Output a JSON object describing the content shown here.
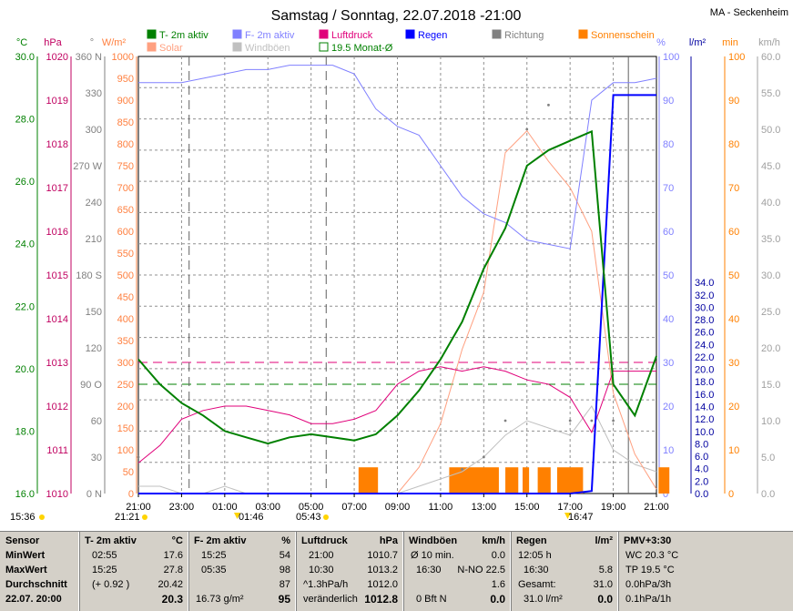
{
  "title": "Samstag / Sonntag, 22.07.2018  -21:00",
  "location": "MA - Seckenheim",
  "legend": [
    {
      "label": "T- 2m aktiv",
      "color": "#008000",
      "box": "filled"
    },
    {
      "label": "F- 2m aktiv",
      "color": "#8080ff",
      "box": "filled"
    },
    {
      "label": "Luftdruck",
      "color": "#e0007a",
      "box": "filled"
    },
    {
      "label": "Regen",
      "color": "#0000ff",
      "box": "filled"
    },
    {
      "label": "Richtung",
      "color": "#808080",
      "box": "filled"
    },
    {
      "label": "Sonnenschein",
      "color": "#ff8000",
      "box": "filled"
    },
    {
      "label": "Solar",
      "color": "#ffa080",
      "box": "filled"
    },
    {
      "label": "Windböen",
      "color": "#c0c0c0",
      "box": "filled"
    },
    {
      "label": "19.5 Monat-Ø",
      "color": "#008000",
      "box": "outline"
    }
  ],
  "axes_left": [
    {
      "unit": "°C",
      "color": "#008000",
      "ticks": [
        "30.0",
        "28.0",
        "26.0",
        "24.0",
        "22.0",
        "20.0",
        "18.0",
        "16.0"
      ]
    },
    {
      "unit": "hPa",
      "color": "#c00060",
      "ticks": [
        "1020",
        "1019",
        "1018",
        "1017",
        "1016",
        "1015",
        "1014",
        "1013",
        "1012",
        "1011",
        "1010"
      ]
    },
    {
      "unit": "°",
      "color": "#808080",
      "ticks": [
        "360 N",
        "330",
        "300",
        "270 W",
        "240",
        "210",
        "180 S",
        "150",
        "120",
        "90  O",
        "60",
        "30",
        "0   N"
      ]
    },
    {
      "unit": "W/m²",
      "color": "#ff8040",
      "ticks": [
        "1000",
        "950",
        "900",
        "850",
        "800",
        "750",
        "700",
        "650",
        "600",
        "550",
        "500",
        "450",
        "400",
        "350",
        "300",
        "250",
        "200",
        "150",
        "100",
        "50",
        "0"
      ]
    }
  ],
  "axes_right": [
    {
      "unit": "%",
      "color": "#8080ff",
      "ticks": [
        "100",
        "90",
        "80",
        "70",
        "60",
        "50",
        "40",
        "30",
        "20",
        "10",
        "0"
      ]
    },
    {
      "unit": "l/m²",
      "color": "#0000a0",
      "ticks": [
        "34.0",
        "32.0",
        "30.0",
        "28.0",
        "26.0",
        "24.0",
        "22.0",
        "20.0",
        "18.0",
        "16.0",
        "14.0",
        "12.0",
        "10.0",
        "8.0",
        "6.0",
        "4.0",
        "2.0",
        "0.0"
      ]
    },
    {
      "unit": "min",
      "color": "#ff8000",
      "ticks": [
        "100",
        "90",
        "80",
        "70",
        "60",
        "50",
        "40",
        "30",
        "20",
        "10",
        "0"
      ]
    },
    {
      "unit": "km/h",
      "color": "#a0a0a0",
      "ticks": [
        "60.0",
        "55.0",
        "50.0",
        "45.0",
        "40.0",
        "35.0",
        "30.0",
        "25.0",
        "20.0",
        "15.0",
        "10.0",
        "5.0",
        "0.0"
      ]
    }
  ],
  "x_ticks": [
    "21:00",
    "23:00",
    "01:00",
    "03:00",
    "05:00",
    "07:00",
    "09:00",
    "11:00",
    "13:00",
    "15:00",
    "17:00",
    "19:00",
    "21:00"
  ],
  "time_markers": {
    "sunset": "21:21",
    "sunrise": "05:43",
    "left_time": "15:36",
    "moon_below": "01:46",
    "moon_right": "16:47"
  },
  "chart_data": {
    "type": "line",
    "x_unit": "hours since 21:00 Saturday",
    "x": [
      0,
      1,
      2,
      3,
      4,
      5,
      6,
      7,
      8,
      9,
      10,
      11,
      12,
      13,
      14,
      15,
      16,
      17,
      18,
      19,
      20,
      21,
      22,
      23,
      24
    ],
    "series": [
      {
        "name": "T- 2m aktiv",
        "unit": "°C",
        "values": [
          20.3,
          19.5,
          18.9,
          18.5,
          18.0,
          17.8,
          17.6,
          17.8,
          17.9,
          17.8,
          17.7,
          17.9,
          18.5,
          19.3,
          20.3,
          21.5,
          23.2,
          24.5,
          26.5,
          27.0,
          27.3,
          27.6,
          19.5,
          18.5,
          20.4
        ]
      },
      {
        "name": "F- 2m aktiv",
        "unit": "%",
        "values": [
          94,
          94,
          94,
          95,
          96,
          97,
          97,
          98,
          98,
          98,
          96,
          88,
          84,
          82,
          75,
          68,
          64,
          62,
          58,
          57,
          56,
          90,
          94,
          94,
          95
        ]
      },
      {
        "name": "Luftdruck",
        "unit": "hPa",
        "values": [
          1010.7,
          1011.1,
          1011.7,
          1011.9,
          1012.0,
          1012.0,
          1011.9,
          1011.8,
          1011.6,
          1011.6,
          1011.7,
          1011.9,
          1012.5,
          1012.8,
          1012.9,
          1012.8,
          1012.9,
          1012.8,
          1012.6,
          1012.5,
          1012.2,
          1011.4,
          1012.8,
          1012.8,
          1012.8
        ]
      },
      {
        "name": "Solar",
        "unit": "W/m²",
        "values": [
          0,
          0,
          0,
          0,
          0,
          0,
          0,
          0,
          0,
          0,
          0,
          0,
          0,
          60,
          160,
          330,
          460,
          780,
          830,
          760,
          700,
          600,
          230,
          90,
          10
        ]
      },
      {
        "name": "Regen",
        "unit": "l/m²",
        "values": [
          0,
          0,
          0,
          0,
          0,
          0,
          0,
          0,
          0,
          0,
          0,
          0,
          0,
          0,
          0,
          0,
          0,
          0,
          0,
          0,
          0,
          0.2,
          31.0,
          31.0,
          31.0
        ]
      },
      {
        "name": "Windböen",
        "unit": "km/h",
        "values": [
          1,
          1,
          0,
          0,
          1,
          0,
          0,
          0,
          0,
          0,
          0,
          0,
          0,
          1,
          2,
          3,
          5,
          8,
          10,
          9,
          8,
          12,
          6,
          4,
          3
        ]
      },
      {
        "name": "Richtung",
        "unit": "°",
        "values": [
          30,
          0,
          0,
          0,
          0,
          0,
          0,
          0,
          0,
          0,
          0,
          0,
          0,
          0,
          0,
          20,
          30,
          60,
          300,
          320,
          60,
          60,
          60,
          0,
          0
        ]
      }
    ],
    "sunshine_blocks_hours": [
      [
        10.2,
        11.1
      ],
      [
        14.4,
        16.7
      ],
      [
        17.0,
        17.6
      ],
      [
        17.8,
        18.1
      ],
      [
        18.5,
        19.1
      ],
      [
        19.4,
        20.6
      ],
      [
        24.1,
        24.6
      ]
    ],
    "reference_lines": [
      {
        "name": "19.5 Monat-Ø",
        "unit": "°C",
        "value": 19.5
      },
      {
        "name": "Luftdruck ref",
        "unit": "hPa",
        "value": 1013.0
      }
    ],
    "ylim_temp": [
      16.0,
      30.0
    ],
    "ylim_pressure": [
      1010,
      1020
    ],
    "ylim_humidity": [
      0,
      100
    ],
    "ylim_rain": [
      0,
      34
    ],
    "ylim_solar": [
      0,
      1000
    ],
    "ylim_wind": [
      0,
      60
    ]
  },
  "table": {
    "headers": [
      [
        "Sensor",
        ""
      ],
      [
        "T- 2m aktiv",
        "°C"
      ],
      [
        "F- 2m aktiv",
        "%"
      ],
      [
        "Luftdruck",
        "hPa"
      ],
      [
        "Windböen",
        "km/h"
      ],
      [
        "Regen",
        "l/m²"
      ],
      [
        "PMV+3:30",
        ""
      ]
    ],
    "row_labels": [
      "MinWert",
      "MaxWert",
      "Durchschnitt",
      "22.07. 20:00"
    ],
    "temp": [
      [
        "02:55",
        "17.6"
      ],
      [
        "15:25",
        "27.8"
      ],
      [
        "(+ 0.92 )",
        "20.42"
      ],
      [
        "",
        "20.3"
      ]
    ],
    "humidity": [
      [
        "15:25",
        "54"
      ],
      [
        "05:35",
        "98"
      ],
      [
        "",
        "87"
      ],
      [
        "16.73 g/m²",
        "95"
      ]
    ],
    "pressure": [
      [
        "21:00",
        "1010.7"
      ],
      [
        "10:30",
        "1013.2"
      ],
      [
        "^1.3hPa/h",
        "1012.0"
      ],
      [
        "veränderlich",
        "1012.8"
      ]
    ],
    "wind": [
      [
        "Ø 10 min.",
        "0.0"
      ],
      [
        "16:30",
        "N-NO 22.5"
      ],
      [
        "",
        "1.6"
      ],
      [
        "0 Bft N",
        "0.0"
      ]
    ],
    "rain": [
      [
        "12:05 h",
        ""
      ],
      [
        "16:30",
        "5.8"
      ],
      [
        "Gesamt:",
        "31.0"
      ],
      [
        "31.0 l/m²",
        "0.0"
      ]
    ],
    "pmv": [
      "WC 20.3 °C",
      "TP 19.5 °C",
      "0.0hPa/3h",
      "0.1hPa/1h"
    ]
  }
}
